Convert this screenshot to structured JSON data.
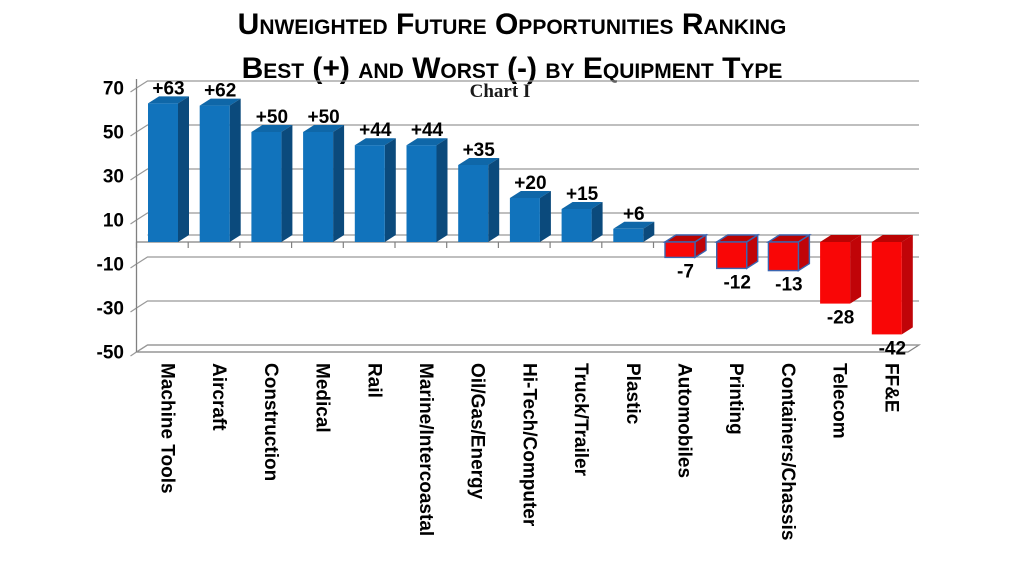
{
  "title": {
    "line1": "Unweighted Future Opportunities Ranking",
    "line2": "Best (+) and Worst (-) by Equipment Type"
  },
  "chart_data": {
    "type": "bar",
    "style": "3d-column",
    "subtitle": "Chart I",
    "categories": [
      "Machine Tools",
      "Aircraft",
      "Construction",
      "Medical",
      "Rail",
      "Marine/Intercoastal",
      "Oil/Gas/Energy",
      "Hi-Tech/Computer",
      "Truck/Trailer",
      "Plastic",
      "Automobiles",
      "Printing",
      "Containers/Chassis",
      "Telecom",
      "FF&E"
    ],
    "values": [
      63,
      62,
      50,
      50,
      44,
      44,
      35,
      20,
      15,
      6,
      -7,
      -12,
      -13,
      -28,
      -42
    ],
    "data_labels": [
      "+63",
      "+62",
      "+50",
      "+50",
      "+44",
      "+44",
      "+35",
      "+20",
      "+15",
      "+6",
      "-7",
      "-12",
      "-13",
      "-28",
      "-42"
    ],
    "y_ticks": [
      70,
      50,
      30,
      10,
      -10,
      -30,
      -50
    ],
    "ylim": [
      -50,
      70
    ],
    "grid": true,
    "legend": "none",
    "xlabel": "",
    "ylabel": "",
    "colors": {
      "bar_positive_front": "#1173BC",
      "bar_positive_top": "#0F67A8",
      "bar_positive_side": "#0B4A7C",
      "bar_negative_front": "#F90606",
      "bar_negative_top": "#BA0303",
      "bar_negative_side": "#C00408",
      "negative_outline": "#3A65B0",
      "outlined_negative_indices": [
        10,
        11,
        12
      ],
      "gridline": "#999999",
      "axis": "#808080",
      "text": "#000000"
    }
  }
}
